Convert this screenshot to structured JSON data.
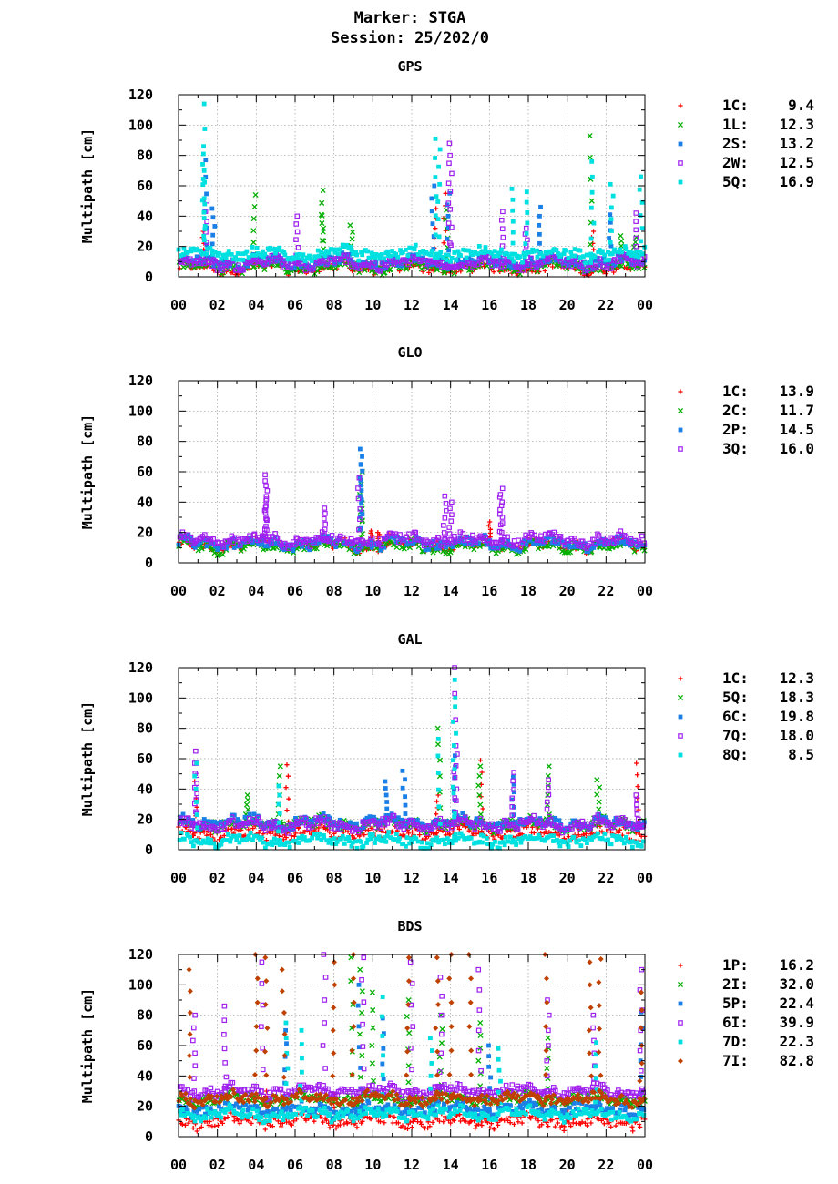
{
  "header": {
    "marker": "Marker: STGA",
    "session": "Session: 25/202/0"
  },
  "chart_data": [
    {
      "type": "scatter",
      "title": "GPS",
      "ylabel": "Multipath [cm]",
      "xlabel": "",
      "ylim": [
        0,
        120
      ],
      "yticks": [
        0,
        20,
        40,
        60,
        80,
        100,
        120
      ],
      "xticks": [
        "00",
        "02",
        "04",
        "06",
        "08",
        "10",
        "12",
        "14",
        "16",
        "18",
        "20",
        "22",
        "00"
      ],
      "xlim": [
        0,
        24
      ],
      "grid": true,
      "legend_placement": "right",
      "series": [
        {
          "name": "1C",
          "label": "1C:",
          "value": "9.4",
          "color": "#ff0000",
          "marker": "plus",
          "baseline": 6,
          "spikes": [
            [
              1.3,
              30
            ],
            [
              13.2,
              45
            ],
            [
              13.7,
              55
            ],
            [
              21.3,
              30
            ]
          ]
        },
        {
          "name": "1L",
          "label": "1L:",
          "value": "12.3",
          "color": "#00b000",
          "marker": "cross",
          "baseline": 7,
          "spikes": [
            [
              3.9,
              54
            ],
            [
              7.4,
              57
            ],
            [
              7.4,
              41
            ],
            [
              8.9,
              34
            ],
            [
              13.8,
              44
            ],
            [
              21.2,
              93
            ],
            [
              22.8,
              27
            ],
            [
              23.5,
              26
            ]
          ]
        },
        {
          "name": "2S",
          "label": "2S:",
          "value": "13.2",
          "color": "#1a7fe6",
          "marker": "square",
          "baseline": 10,
          "spikes": [
            [
              1.4,
              77
            ],
            [
              1.8,
              45
            ],
            [
              13.1,
              60
            ],
            [
              13.9,
              55
            ],
            [
              18.6,
              46
            ],
            [
              22.2,
              41
            ]
          ]
        },
        {
          "name": "2W",
          "label": "2W:",
          "value": "12.5",
          "color": "#a020f0",
          "marker": "open-square",
          "baseline": 9,
          "spikes": [
            [
              1.4,
              50
            ],
            [
              6.1,
              40
            ],
            [
              13.9,
              88
            ],
            [
              14.0,
              80
            ],
            [
              16.7,
              43
            ],
            [
              17.9,
              32
            ],
            [
              23.5,
              42
            ]
          ]
        },
        {
          "name": "5Q",
          "label": "5Q:",
          "value": "16.9",
          "color": "#00e0e0",
          "marker": "square",
          "baseline": 15,
          "spikes": [
            [
              1.3,
              114
            ],
            [
              1.3,
              86
            ],
            [
              1.3,
              70
            ],
            [
              13.2,
              91
            ],
            [
              13.4,
              84
            ],
            [
              17.2,
              58
            ],
            [
              17.9,
              56
            ],
            [
              21.3,
              76
            ],
            [
              22.3,
              61
            ],
            [
              23.8,
              66
            ]
          ]
        }
      ]
    },
    {
      "type": "scatter",
      "title": "GLO",
      "ylabel": "Multipath [cm]",
      "xlabel": "",
      "ylim": [
        0,
        120
      ],
      "yticks": [
        0,
        20,
        40,
        60,
        80,
        100,
        120
      ],
      "xticks": [
        "00",
        "02",
        "04",
        "06",
        "08",
        "10",
        "12",
        "14",
        "16",
        "18",
        "20",
        "22",
        "00"
      ],
      "xlim": [
        0,
        24
      ],
      "grid": true,
      "legend_placement": "right",
      "series": [
        {
          "name": "1C",
          "label": "1C:",
          "value": "13.9",
          "color": "#ff0000",
          "marker": "plus",
          "baseline": 12,
          "spikes": [
            [
              9.9,
              21
            ],
            [
              10.3,
              20
            ],
            [
              10.8,
              19
            ],
            [
              16.0,
              27
            ]
          ]
        },
        {
          "name": "2C",
          "label": "2C:",
          "value": "11.7",
          "color": "#00b000",
          "marker": "cross",
          "baseline": 11,
          "spikes": [
            [
              9.4,
              45
            ],
            [
              9.4,
              60
            ]
          ]
        },
        {
          "name": "2P",
          "label": "2P:",
          "value": "14.5",
          "color": "#1a7fe6",
          "marker": "square",
          "baseline": 13,
          "spikes": [
            [
              9.4,
              75
            ],
            [
              9.4,
              70
            ],
            [
              9.4,
              65
            ]
          ]
        },
        {
          "name": "3Q",
          "label": "3Q:",
          "value": "16.0",
          "color": "#a020f0",
          "marker": "open-square",
          "baseline": 15,
          "spikes": [
            [
              4.5,
              58
            ],
            [
              4.5,
              54
            ],
            [
              4.5,
              42
            ],
            [
              7.5,
              36
            ],
            [
              9.3,
              56
            ],
            [
              13.7,
              44
            ],
            [
              14.0,
              40
            ],
            [
              16.6,
              49
            ],
            [
              16.6,
              45
            ]
          ]
        }
      ]
    },
    {
      "type": "scatter",
      "title": "GAL",
      "ylabel": "Multipath [cm]",
      "xlabel": "",
      "ylim": [
        0,
        120
      ],
      "yticks": [
        0,
        20,
        40,
        60,
        80,
        100,
        120
      ],
      "xticks": [
        "00",
        "02",
        "04",
        "06",
        "08",
        "10",
        "12",
        "14",
        "16",
        "18",
        "20",
        "22",
        "00"
      ],
      "xlim": [
        0,
        24
      ],
      "grid": true,
      "legend_placement": "right",
      "series": [
        {
          "name": "1C",
          "label": "1C:",
          "value": "12.3",
          "color": "#ff0000",
          "marker": "plus",
          "baseline": 11,
          "spikes": [
            [
              0.9,
              45
            ],
            [
              5.6,
              56
            ],
            [
              13.3,
              36
            ],
            [
              15.6,
              59
            ],
            [
              23.6,
              57
            ]
          ]
        },
        {
          "name": "5Q",
          "label": "5Q:",
          "value": "18.3",
          "color": "#00b000",
          "marker": "cross",
          "baseline": 17,
          "spikes": [
            [
              3.5,
              36
            ],
            [
              5.2,
              55
            ],
            [
              13.4,
              80
            ],
            [
              15.5,
              55
            ],
            [
              19.0,
              55
            ],
            [
              21.6,
              46
            ]
          ]
        },
        {
          "name": "6C",
          "label": "6C:",
          "value": "19.8",
          "color": "#1a7fe6",
          "marker": "square",
          "baseline": 18,
          "spikes": [
            [
              10.7,
              45
            ],
            [
              11.6,
              52
            ],
            [
              14.2,
              62
            ],
            [
              17.2,
              48
            ]
          ]
        },
        {
          "name": "7Q",
          "label": "7Q:",
          "value": "18.0",
          "color": "#a020f0",
          "marker": "open-square",
          "baseline": 17,
          "spikes": [
            [
              0.9,
              65
            ],
            [
              0.9,
              57
            ],
            [
              14.2,
              120
            ],
            [
              14.3,
              63
            ],
            [
              17.2,
              51
            ],
            [
              19.0,
              46
            ],
            [
              23.6,
              36
            ]
          ]
        },
        {
          "name": "8Q",
          "label": "8Q:",
          "value": "8.5",
          "color": "#00e0e0",
          "marker": "square",
          "baseline": 6,
          "spikes": [
            [
              0.9,
              57
            ],
            [
              5.2,
              42
            ],
            [
              13.4,
              73
            ],
            [
              14.2,
              112
            ],
            [
              14.2,
              100
            ]
          ]
        }
      ]
    },
    {
      "type": "scatter",
      "title": "BDS",
      "ylabel": "Multipath [cm]",
      "xlabel": "",
      "ylim": [
        0,
        120
      ],
      "yticks": [
        0,
        20,
        40,
        60,
        80,
        100,
        120
      ],
      "xticks": [
        "00",
        "02",
        "04",
        "06",
        "08",
        "10",
        "12",
        "14",
        "16",
        "18",
        "20",
        "22",
        "00"
      ],
      "xlim": [
        0,
        24
      ],
      "grid": true,
      "legend_placement": "right",
      "series": [
        {
          "name": "1P",
          "label": "1P:",
          "value": "16.2",
          "color": "#ff0000",
          "marker": "plus",
          "baseline": 10,
          "spikes": [
            [
              4.5,
              30
            ],
            [
              8.0,
              28
            ],
            [
              12.0,
              26
            ],
            [
              20.0,
              22
            ]
          ]
        },
        {
          "name": "2I",
          "label": "2I:",
          "value": "32.0",
          "color": "#00b000",
          "marker": "cross",
          "baseline": 25,
          "spikes": [
            [
              8.9,
              118
            ],
            [
              9.4,
              110
            ],
            [
              10.0,
              95
            ],
            [
              11.8,
              90
            ],
            [
              13.5,
              80
            ],
            [
              15.5,
              75
            ],
            [
              19.0,
              65
            ]
          ]
        },
        {
          "name": "5P",
          "label": "5P:",
          "value": "22.4",
          "color": "#1a7fe6",
          "marker": "square",
          "baseline": 18,
          "spikes": [
            [
              5.5,
              70
            ],
            [
              9.3,
              100
            ],
            [
              10.5,
              78
            ],
            [
              16.0,
              60
            ],
            [
              23.8,
              82
            ]
          ]
        },
        {
          "name": "6I",
          "label": "6I:",
          "value": "39.9",
          "color": "#a020f0",
          "marker": "open-square",
          "baseline": 30,
          "spikes": [
            [
              0.8,
              80
            ],
            [
              2.4,
              86
            ],
            [
              4.3,
              115
            ],
            [
              7.5,
              120
            ],
            [
              9.5,
              118
            ],
            [
              12.0,
              115
            ],
            [
              13.5,
              105
            ],
            [
              15.5,
              110
            ],
            [
              19.0,
              90
            ],
            [
              21.4,
              80
            ],
            [
              23.8,
              110
            ]
          ]
        },
        {
          "name": "7D",
          "label": "7D:",
          "value": "22.3",
          "color": "#00e0e0",
          "marker": "square",
          "baseline": 15,
          "spikes": [
            [
              5.6,
              75
            ],
            [
              6.3,
              70
            ],
            [
              10.5,
              92
            ],
            [
              13.0,
              65
            ],
            [
              16.5,
              58
            ],
            [
              21.5,
              62
            ]
          ]
        },
        {
          "name": "7I",
          "label": "7I:",
          "value": "82.8",
          "color": "#c04000",
          "marker": "diamond",
          "baseline": 25,
          "spikes": [
            [
              0.6,
              110
            ],
            [
              4.0,
              120
            ],
            [
              4.5,
              118
            ],
            [
              5.4,
              110
            ],
            [
              8.0,
              115
            ],
            [
              9.0,
              120
            ],
            [
              11.8,
              118
            ],
            [
              13.3,
              118
            ],
            [
              14.0,
              120
            ],
            [
              15.0,
              120
            ],
            [
              18.9,
              120
            ],
            [
              21.2,
              115
            ],
            [
              21.7,
              117
            ],
            [
              23.8,
              95
            ]
          ]
        }
      ]
    }
  ]
}
